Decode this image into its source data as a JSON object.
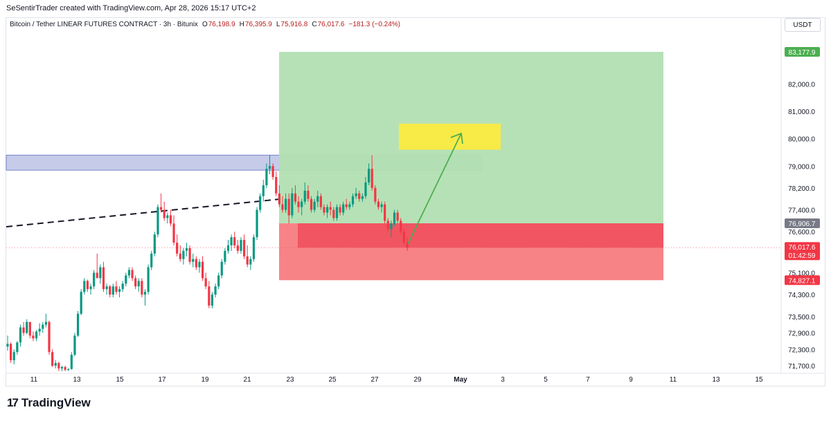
{
  "header": {
    "caption": "SeSentirTrader created with TradingView.com, Apr 28, 2026 15:17 UTC+2"
  },
  "legend": {
    "symbol": "Bitcoin / Tether LINEAR FUTURES CONTRACT · 3h · Bitunix",
    "open_key": "O",
    "open": "76,198.9",
    "high_key": "H",
    "high": "76,395.9",
    "low_key": "L",
    "low": "75,916.8",
    "close_key": "C",
    "close": "76,017.6",
    "change": "−181.3 (−0.24%)"
  },
  "currency": "USDT",
  "brand": {
    "logo_glyph": "17",
    "name": "TradingView"
  },
  "colors": {
    "up": "#089981",
    "down": "#f23645",
    "target_zone": "#b2dfb2",
    "stop_zone": "#f77c80",
    "stop_zone_dark": "#f0505e",
    "resistance_zone": "#9fa8da",
    "entry_tag": "#787b86",
    "target_tag": "#4caf50",
    "stop_tag": "#f23645",
    "arrow": "#4caf50",
    "target_box": "#ffeb3b"
  },
  "chart_data": {
    "type": "candlestick",
    "y_ticks": [
      "82,000.0",
      "81,000.0",
      "80,000.0",
      "79,000.0",
      "78,200.0",
      "77,400.0",
      "76,600.0",
      "75,100.0",
      "74,300.0",
      "73,500.0",
      "72,900.0",
      "72,300.0",
      "71,700.0"
    ],
    "x_ticks": [
      "11",
      "13",
      "15",
      "17",
      "19",
      "21",
      "23",
      "25",
      "27",
      "29",
      "May",
      "3",
      "5",
      "7",
      "9",
      "11",
      "13",
      "15"
    ],
    "ylim": [
      71500,
      83600
    ],
    "price_tags": [
      {
        "label": "83,177.9",
        "value": 83177.9,
        "kind": "target"
      },
      {
        "label": "76,906.7",
        "value": 76906.7,
        "kind": "entry"
      },
      {
        "label": "76,017.6",
        "sublabel": "01:42:59",
        "value": 76017.6,
        "kind": "last"
      },
      {
        "label": "74,827.1",
        "value": 74827.1,
        "kind": "stop"
      }
    ],
    "position": {
      "target": 83177.9,
      "entry": 76906.7,
      "stop": 74827.1,
      "start_x": "22",
      "end_x": "10 May"
    },
    "resistance_zone": [
      78850,
      79400
    ],
    "target_box": [
      79600,
      80550
    ],
    "candles": [
      [
        72400,
        72800,
        72250,
        72500
      ],
      [
        72500,
        72550,
        71800,
        71900
      ],
      [
        71900,
        72300,
        71750,
        72200
      ],
      [
        72200,
        72600,
        72100,
        72550
      ],
      [
        72550,
        73200,
        72400,
        73100
      ],
      [
        73100,
        73300,
        72800,
        72900
      ],
      [
        72900,
        73400,
        72850,
        73300
      ],
      [
        73300,
        73300,
        72700,
        72800
      ],
      [
        72800,
        72950,
        72600,
        72700
      ],
      [
        72700,
        73000,
        72600,
        72950
      ],
      [
        72950,
        73250,
        72800,
        73050
      ],
      [
        73050,
        73300,
        72900,
        73200
      ],
      [
        73200,
        73600,
        73100,
        73300
      ],
      [
        73300,
        73350,
        72100,
        72200
      ],
      [
        72200,
        72300,
        71650,
        71700
      ],
      [
        71700,
        71900,
        71600,
        71800
      ],
      [
        71800,
        71850,
        71500,
        71600
      ],
      [
        71600,
        71700,
        71500,
        71650
      ],
      [
        71650,
        71700,
        71500,
        71550
      ],
      [
        71550,
        71600,
        71500,
        71580
      ],
      [
        71580,
        72200,
        71550,
        72100
      ],
      [
        72100,
        72900,
        72050,
        72800
      ],
      [
        72800,
        73700,
        72750,
        73600
      ],
      [
        73600,
        74500,
        73550,
        74400
      ],
      [
        74400,
        74900,
        74300,
        74800
      ],
      [
        74800,
        74850,
        74400,
        74500
      ],
      [
        74500,
        74700,
        74300,
        74600
      ],
      [
        74600,
        75200,
        74500,
        75100
      ],
      [
        75100,
        75800,
        75000,
        74900
      ],
      [
        74900,
        75400,
        74700,
        75300
      ],
      [
        75300,
        75500,
        74400,
        74500
      ],
      [
        74500,
        74700,
        74300,
        74600
      ],
      [
        74600,
        74650,
        74200,
        74300
      ],
      [
        74300,
        74700,
        74200,
        74600
      ],
      [
        74600,
        74800,
        74300,
        74400
      ],
      [
        74400,
        74600,
        74200,
        74500
      ],
      [
        74500,
        74800,
        74400,
        74700
      ],
      [
        74700,
        75100,
        74600,
        75000
      ],
      [
        75000,
        75300,
        74900,
        75200
      ],
      [
        75200,
        75300,
        74800,
        74900
      ],
      [
        74900,
        75000,
        74500,
        74600
      ],
      [
        74600,
        74900,
        74400,
        74800
      ],
      [
        74800,
        74900,
        74200,
        74300
      ],
      [
        74300,
        74500,
        73900,
        74400
      ],
      [
        74400,
        75400,
        74300,
        75300
      ],
      [
        75300,
        75900,
        75200,
        75800
      ],
      [
        75800,
        76600,
        75700,
        76500
      ],
      [
        76500,
        77600,
        76400,
        77500
      ],
      [
        77500,
        78000,
        77300,
        77400
      ],
      [
        77400,
        77700,
        77000,
        77100
      ],
      [
        77100,
        77300,
        76900,
        77200
      ],
      [
        77200,
        77400,
        76800,
        76900
      ],
      [
        76900,
        77200,
        76100,
        76200
      ],
      [
        76200,
        76500,
        75700,
        75800
      ],
      [
        75800,
        76100,
        75500,
        75600
      ],
      [
        75600,
        76000,
        75400,
        75900
      ],
      [
        75900,
        76200,
        75700,
        76000
      ],
      [
        76000,
        76100,
        75400,
        75500
      ],
      [
        75500,
        75800,
        75300,
        75600
      ],
      [
        75600,
        75700,
        75200,
        75300
      ],
      [
        75300,
        75600,
        75100,
        75500
      ],
      [
        75500,
        75700,
        74800,
        74900
      ],
      [
        74900,
        75100,
        74500,
        74600
      ],
      [
        74600,
        74800,
        73800,
        73900
      ],
      [
        73900,
        74400,
        73800,
        74300
      ],
      [
        74300,
        74700,
        74200,
        74600
      ],
      [
        74600,
        75100,
        74500,
        75000
      ],
      [
        75000,
        75600,
        74900,
        75500
      ],
      [
        75500,
        76000,
        75400,
        75900
      ],
      [
        75900,
        76300,
        75800,
        76100
      ],
      [
        76100,
        76500,
        75900,
        76400
      ],
      [
        76400,
        76600,
        76000,
        76100
      ],
      [
        76100,
        76300,
        75800,
        75900
      ],
      [
        75900,
        76400,
        75800,
        76300
      ],
      [
        76300,
        76500,
        75600,
        75700
      ],
      [
        75700,
        76100,
        75300,
        75400
      ],
      [
        75400,
        75700,
        75200,
        75600
      ],
      [
        75600,
        76500,
        75500,
        76400
      ],
      [
        76400,
        77500,
        76300,
        77400
      ],
      [
        77400,
        78000,
        77300,
        77900
      ],
      [
        77900,
        78500,
        77700,
        78300
      ],
      [
        78300,
        79100,
        78200,
        78900
      ],
      [
        78900,
        79400,
        78700,
        79000
      ],
      [
        79000,
        79100,
        78500,
        78600
      ],
      [
        78600,
        78800,
        77900,
        78000
      ],
      [
        78000,
        78300,
        77500,
        77600
      ],
      [
        77600,
        77900,
        77300,
        77400
      ],
      [
        77400,
        78000,
        77300,
        77800
      ],
      [
        77800,
        78000,
        76900,
        77200
      ],
      [
        77200,
        78200,
        77100,
        78000
      ],
      [
        78000,
        78300,
        77600,
        77700
      ],
      [
        77700,
        77900,
        77300,
        77500
      ],
      [
        77500,
        77800,
        77200,
        77700
      ],
      [
        77700,
        78400,
        77600,
        78100
      ],
      [
        78100,
        78300,
        77700,
        77800
      ],
      [
        77800,
        77900,
        77300,
        77400
      ],
      [
        77400,
        77800,
        77300,
        77700
      ],
      [
        77700,
        78100,
        77500,
        77900
      ],
      [
        77900,
        78000,
        77400,
        77500
      ],
      [
        77500,
        77600,
        77200,
        77300
      ],
      [
        77300,
        77600,
        77100,
        77500
      ],
      [
        77500,
        77700,
        77200,
        77400
      ],
      [
        77400,
        77500,
        77000,
        77100
      ],
      [
        77100,
        77600,
        77000,
        77500
      ],
      [
        77500,
        77600,
        77200,
        77300
      ],
      [
        77300,
        77700,
        77200,
        77600
      ],
      [
        77600,
        77800,
        77400,
        77500
      ],
      [
        77500,
        77700,
        77400,
        77600
      ],
      [
        77600,
        78000,
        77500,
        77900
      ],
      [
        77900,
        78200,
        77800,
        78000
      ],
      [
        78000,
        78100,
        77700,
        77800
      ],
      [
        77800,
        78000,
        77700,
        77900
      ],
      [
        77900,
        78600,
        77800,
        78400
      ],
      [
        78400,
        79100,
        78300,
        78900
      ],
      [
        78900,
        79400,
        78100,
        78200
      ],
      [
        78200,
        78300,
        77600,
        77700
      ],
      [
        77700,
        77800,
        77400,
        77500
      ],
      [
        77500,
        77700,
        77300,
        77600
      ],
      [
        77600,
        77700,
        76900,
        77000
      ],
      [
        77000,
        77100,
        76600,
        76700
      ],
      [
        76700,
        77000,
        76400,
        76900
      ],
      [
        76900,
        77400,
        76800,
        77300
      ],
      [
        77300,
        77400,
        76900,
        77000
      ],
      [
        77000,
        77100,
        76500,
        76600
      ],
      [
        76600,
        76700,
        76100,
        76200
      ],
      [
        76200,
        76400,
        75900,
        76017
      ]
    ]
  }
}
